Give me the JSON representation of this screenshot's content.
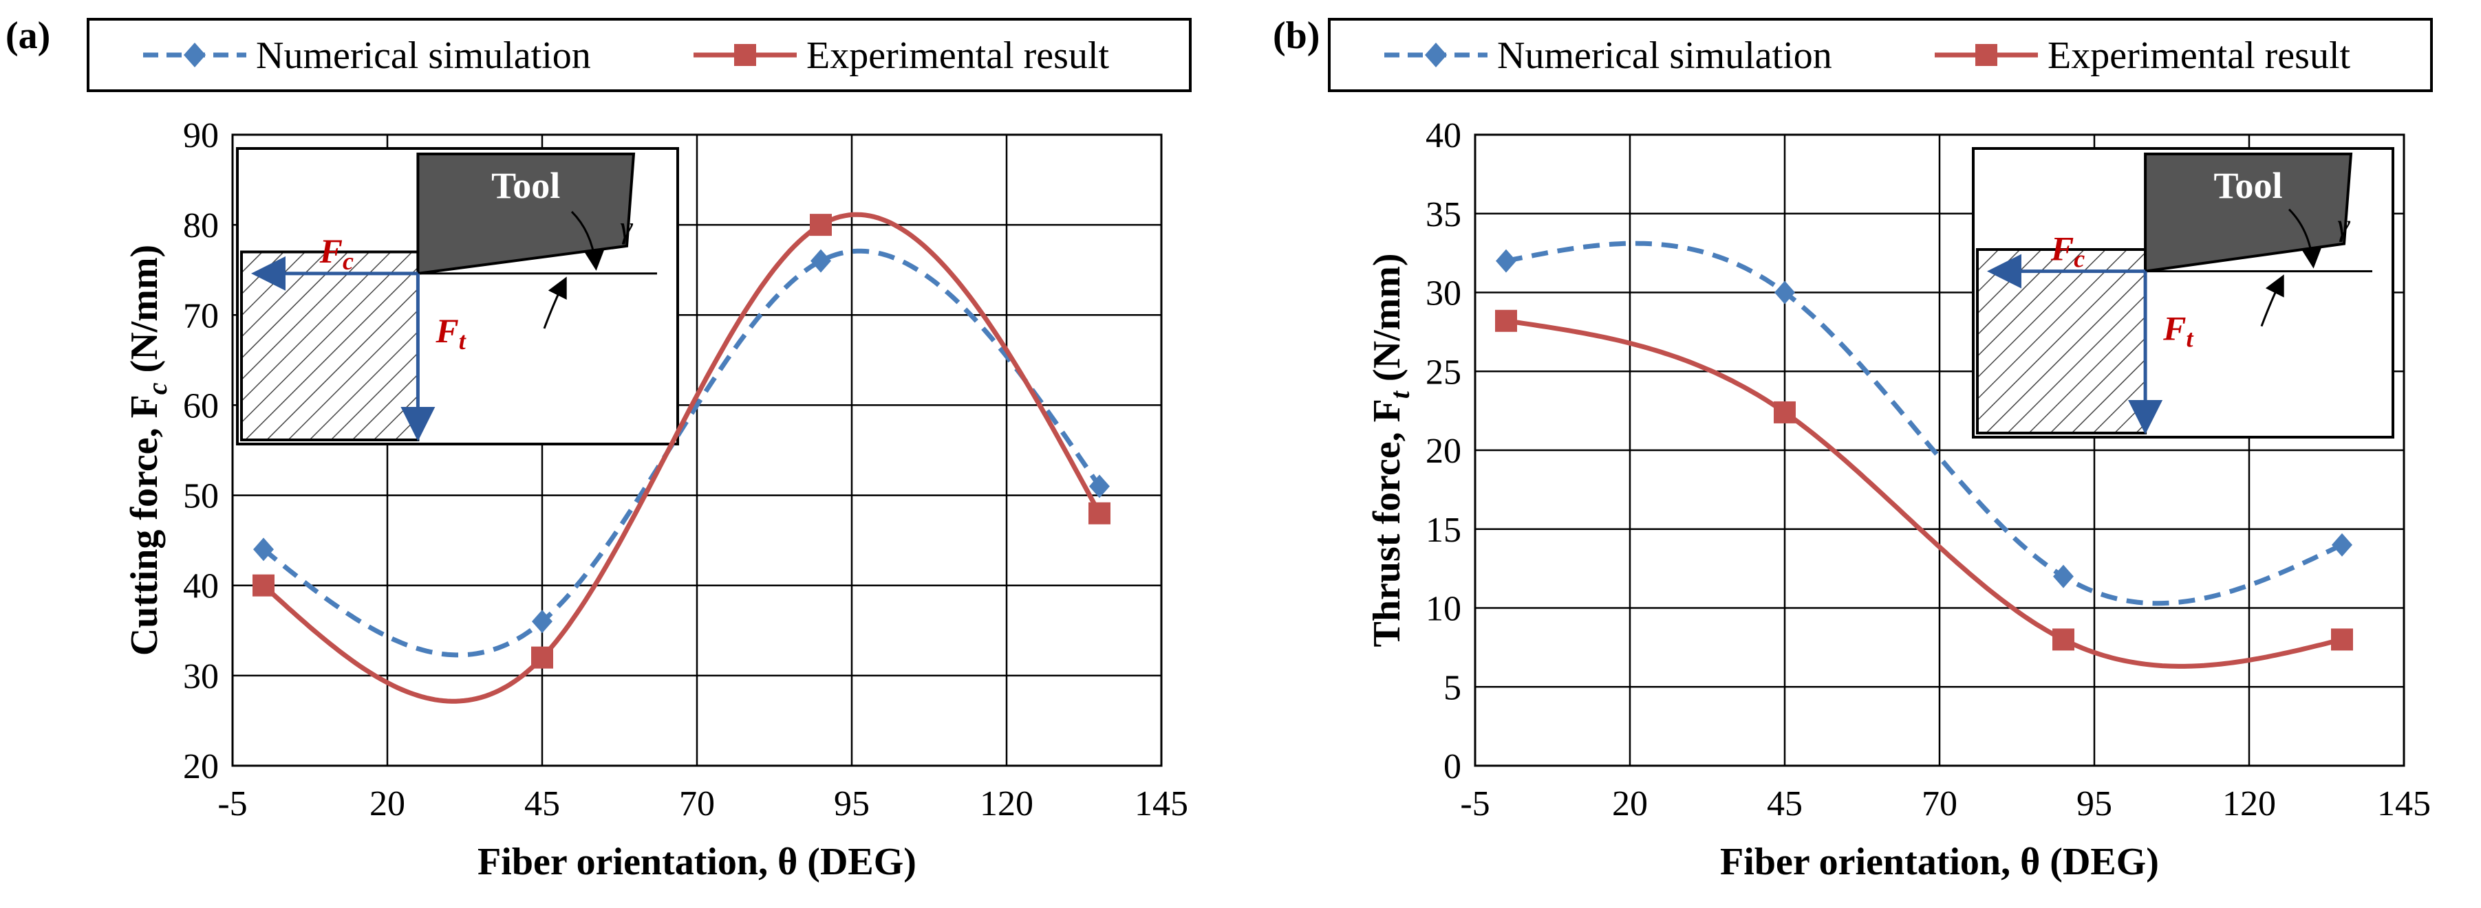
{
  "chart_data": [
    {
      "type": "line",
      "panel_label": "(a)",
      "xlabel": "Fiber orientation, θ (DEG)",
      "ylabel": "Cutting force, F",
      "ylabel_sub": "c",
      "ylabel_unit": " (N/mm)",
      "xlim": [
        -5,
        145
      ],
      "ylim": [
        20,
        90
      ],
      "xticks": [
        -5,
        20,
        45,
        70,
        95,
        120,
        145
      ],
      "yticks": [
        20,
        30,
        40,
        50,
        60,
        70,
        80,
        90
      ],
      "grid": true,
      "legend": "top",
      "series": [
        {
          "name": "Numerical simulation",
          "x": [
            0,
            45,
            90,
            135
          ],
          "y": [
            44,
            36,
            76,
            51
          ],
          "color": "#4a7ebb",
          "style": "dashed",
          "marker": "diamond"
        },
        {
          "name": "Experimental result",
          "x": [
            0,
            45,
            90,
            135
          ],
          "y": [
            40,
            32,
            80,
            48
          ],
          "color": "#c0504d",
          "style": "solid",
          "marker": "square"
        }
      ],
      "inset": {
        "tool_label": "Tool",
        "fc_label": "F",
        "fc_sub": "c",
        "ft_label": "F",
        "ft_sub": "t",
        "angle_label": "γ",
        "position": "top-left"
      }
    },
    {
      "type": "line",
      "panel_label": "(b)",
      "xlabel": "Fiber orientation, θ (DEG)",
      "ylabel": "Thrust force, F",
      "ylabel_sub": "t",
      "ylabel_unit": " (N/mm)",
      "xlim": [
        -5,
        145
      ],
      "ylim": [
        0,
        40
      ],
      "xticks": [
        -5,
        20,
        45,
        70,
        95,
        120,
        145
      ],
      "yticks": [
        0,
        5,
        10,
        15,
        20,
        25,
        30,
        35,
        40
      ],
      "grid": true,
      "legend": "top",
      "series": [
        {
          "name": "Numerical simulation",
          "x": [
            0,
            45,
            90,
            135
          ],
          "y": [
            32,
            30,
            12,
            14
          ],
          "color": "#4a7ebb",
          "style": "dashed",
          "marker": "diamond"
        },
        {
          "name": "Experimental result",
          "x": [
            0,
            45,
            90,
            135
          ],
          "y": [
            28.2,
            22.4,
            8,
            8
          ],
          "color": "#c0504d",
          "style": "solid",
          "marker": "square"
        }
      ],
      "inset": {
        "tool_label": "Tool",
        "fc_label": "F",
        "fc_sub": "c",
        "ft_label": "F",
        "ft_sub": "t",
        "angle_label": "γ",
        "position": "top-right"
      }
    }
  ]
}
